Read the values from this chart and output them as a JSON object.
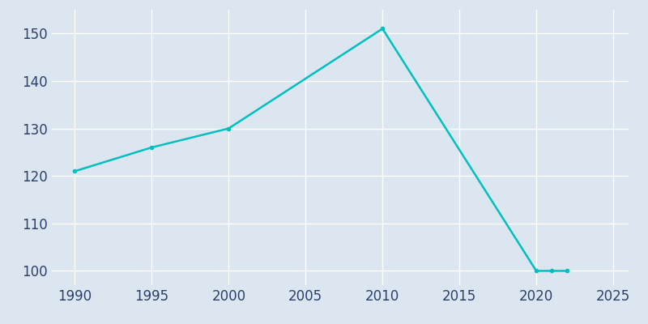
{
  "years": [
    1990,
    1995,
    2000,
    2010,
    2020,
    2021,
    2022
  ],
  "population": [
    121,
    126,
    130,
    151,
    100,
    100,
    100
  ],
  "line_color": "#00bfbf",
  "background_color": "#dce6f0",
  "plot_bg_color": "#dce6f0",
  "grid_color": "#ffffff",
  "tick_color": "#2d3f6b",
  "xlim": [
    1988.5,
    2026
  ],
  "ylim": [
    97,
    155
  ],
  "xticks": [
    1990,
    1995,
    2000,
    2005,
    2010,
    2015,
    2020,
    2025
  ],
  "yticks": [
    100,
    110,
    120,
    130,
    140,
    150
  ],
  "linewidth": 1.8,
  "marker": "o",
  "markersize": 3,
  "tick_labelsize": 12
}
